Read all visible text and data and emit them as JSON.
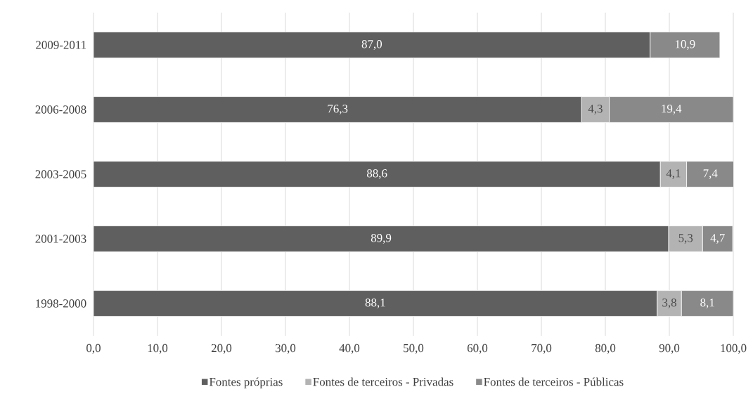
{
  "chart_data": {
    "type": "bar",
    "orientation": "horizontal",
    "stacked": true,
    "categories": [
      "2009-2011",
      "2006-2008",
      "2003-2005",
      "2001-2003",
      "1998-2000"
    ],
    "series": [
      {
        "name": "Fontes próprias",
        "color": "#5f5f5f",
        "values": [
          87.0,
          76.3,
          88.6,
          89.9,
          88.1
        ],
        "value_labels": [
          "87,0",
          "76,3",
          "88,6",
          "89,9",
          "88,1"
        ]
      },
      {
        "name": "Fontes de terceiros - Privadas",
        "color": "#b3b3b3",
        "values": [
          null,
          4.3,
          4.1,
          5.3,
          3.8
        ],
        "value_labels": [
          null,
          "4,3",
          "4,1",
          "5,3",
          "3,8"
        ]
      },
      {
        "name": "Fontes de terceiros - Públicas",
        "color": "#898989",
        "values": [
          10.9,
          19.4,
          7.4,
          4.7,
          8.1
        ],
        "value_labels": [
          "10,9",
          "19,4",
          "7,4",
          "4,7",
          "8,1"
        ]
      }
    ],
    "xlim": [
      0,
      100
    ],
    "xticks": [
      {
        "value": 0,
        "label": "0,0"
      },
      {
        "value": 10,
        "label": "10,0"
      },
      {
        "value": 20,
        "label": "20,0"
      },
      {
        "value": 30,
        "label": "30,0"
      },
      {
        "value": 40,
        "label": "40,0"
      },
      {
        "value": 50,
        "label": "50,0"
      },
      {
        "value": 60,
        "label": "60,0"
      },
      {
        "value": 70,
        "label": "70,0"
      },
      {
        "value": 80,
        "label": "80,0"
      },
      {
        "value": 90,
        "label": "90,0"
      },
      {
        "value": 100,
        "label": "100,0"
      }
    ],
    "grid": "x",
    "legend": "bottom"
  }
}
